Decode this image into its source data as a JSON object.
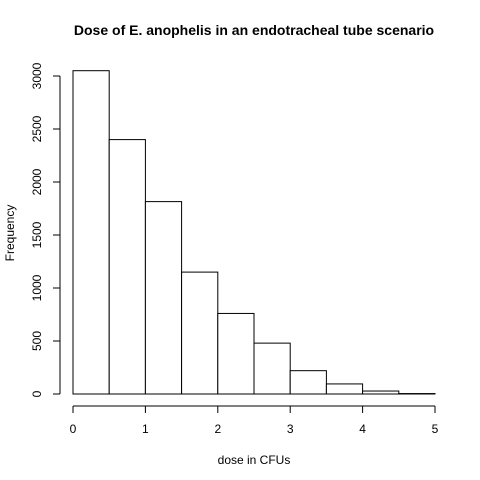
{
  "chart_data": {
    "type": "bar",
    "title": "Dose of E. anophelis in an endotracheal tube scenario",
    "xlabel": "dose in CFUs",
    "ylabel": "Frequency",
    "bins": [
      {
        "from": 0.0,
        "to": 0.5,
        "value": 3050
      },
      {
        "from": 0.5,
        "to": 1.0,
        "value": 2400
      },
      {
        "from": 1.0,
        "to": 1.5,
        "value": 1815
      },
      {
        "from": 1.5,
        "to": 2.0,
        "value": 1150
      },
      {
        "from": 2.0,
        "to": 2.5,
        "value": 760
      },
      {
        "from": 2.5,
        "to": 3.0,
        "value": 480
      },
      {
        "from": 3.0,
        "to": 3.5,
        "value": 220
      },
      {
        "from": 3.5,
        "to": 4.0,
        "value": 95
      },
      {
        "from": 4.0,
        "to": 4.5,
        "value": 28
      },
      {
        "from": 4.5,
        "to": 5.0,
        "value": 4
      }
    ],
    "xlim": [
      0,
      5
    ],
    "ylim": [
      0,
      3000
    ],
    "x_ticks": [
      0,
      1,
      2,
      3,
      4,
      5
    ],
    "y_ticks": [
      0,
      500,
      1000,
      1500,
      2000,
      2500,
      3000
    ],
    "grid": false,
    "legend": "none"
  }
}
